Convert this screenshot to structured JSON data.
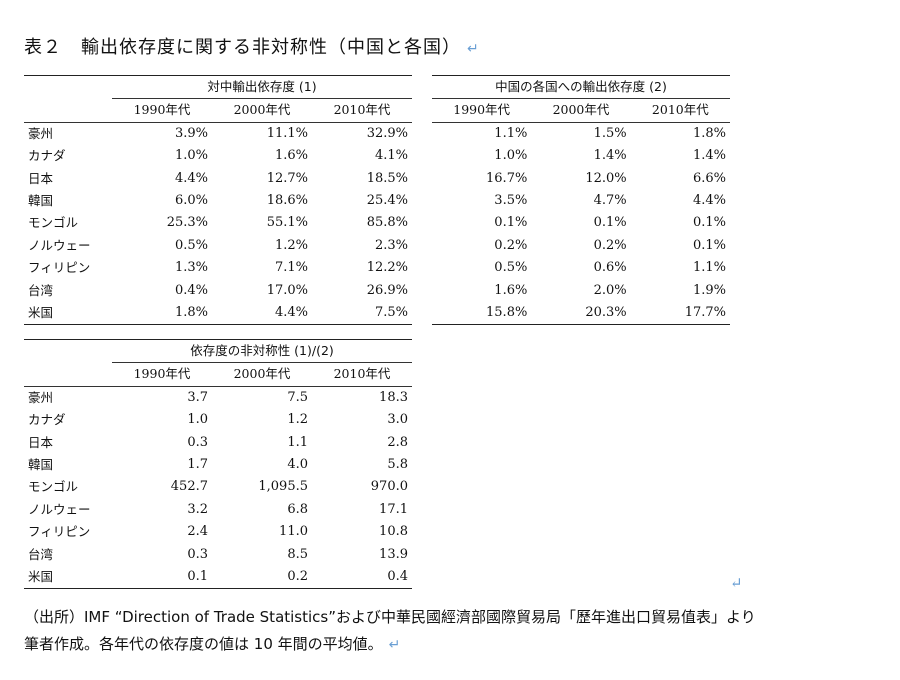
{
  "title": "表２　輸出依存度に関する非対称性（中国と各国）",
  "return_mark": "↵",
  "years": [
    "1990年代",
    "2000年代",
    "2010年代"
  ],
  "table1": {
    "group_header": "対中輸出依存度 (1)",
    "rows": [
      {
        "label": "豪州",
        "values": [
          "3.9%",
          "11.1%",
          "32.9%"
        ]
      },
      {
        "label": "カナダ",
        "values": [
          "1.0%",
          "1.6%",
          "4.1%"
        ]
      },
      {
        "label": "日本",
        "values": [
          "4.4%",
          "12.7%",
          "18.5%"
        ]
      },
      {
        "label": "韓国",
        "values": [
          "6.0%",
          "18.6%",
          "25.4%"
        ]
      },
      {
        "label": "モンゴル",
        "values": [
          "25.3%",
          "55.1%",
          "85.8%"
        ]
      },
      {
        "label": "ノルウェー",
        "values": [
          "0.5%",
          "1.2%",
          "2.3%"
        ]
      },
      {
        "label": "フィリピン",
        "values": [
          "1.3%",
          "7.1%",
          "12.2%"
        ]
      },
      {
        "label": "台湾",
        "values": [
          "0.4%",
          "17.0%",
          "26.9%"
        ]
      },
      {
        "label": "米国",
        "values": [
          "1.8%",
          "4.4%",
          "7.5%"
        ]
      }
    ]
  },
  "table2": {
    "group_header": "中国の各国への輸出依存度 (2)",
    "rows": [
      [
        "1.1%",
        "1.5%",
        "1.8%"
      ],
      [
        "1.0%",
        "1.4%",
        "1.4%"
      ],
      [
        "16.7%",
        "12.0%",
        "6.6%"
      ],
      [
        "3.5%",
        "4.7%",
        "4.4%"
      ],
      [
        "0.1%",
        "0.1%",
        "0.1%"
      ],
      [
        "0.2%",
        "0.2%",
        "0.1%"
      ],
      [
        "0.5%",
        "0.6%",
        "1.1%"
      ],
      [
        "1.6%",
        "2.0%",
        "1.9%"
      ],
      [
        "15.8%",
        "20.3%",
        "17.7%"
      ]
    ]
  },
  "table3": {
    "group_header": "依存度の非対称性 (1)/(2)",
    "rows": [
      {
        "label": "豪州",
        "values": [
          "3.7",
          "7.5",
          "18.3"
        ]
      },
      {
        "label": "カナダ",
        "values": [
          "1.0",
          "1.2",
          "3.0"
        ]
      },
      {
        "label": "日本",
        "values": [
          "0.3",
          "1.1",
          "2.8"
        ]
      },
      {
        "label": "韓国",
        "values": [
          "1.7",
          "4.0",
          "5.8"
        ]
      },
      {
        "label": "モンゴル",
        "values": [
          "452.7",
          "1,095.5",
          "970.0"
        ]
      },
      {
        "label": "ノルウェー",
        "values": [
          "3.2",
          "6.8",
          "17.1"
        ]
      },
      {
        "label": "フィリピン",
        "values": [
          "2.4",
          "11.0",
          "10.8"
        ]
      },
      {
        "label": "台湾",
        "values": [
          "0.3",
          "8.5",
          "13.9"
        ]
      },
      {
        "label": "米国",
        "values": [
          "0.1",
          "0.2",
          "0.4"
        ]
      }
    ]
  },
  "note": {
    "line1": "（出所）IMF “Direction of Trade Statistics”および中華民國經濟部國際貿易局「歷年進出口貿易值表」より",
    "line2": "筆者作成。各年代の依存度の値は 10 年間の平均値。"
  },
  "colors": {
    "return_mark": "#6a9fd4",
    "rule": "#222222",
    "text": "#111111"
  }
}
